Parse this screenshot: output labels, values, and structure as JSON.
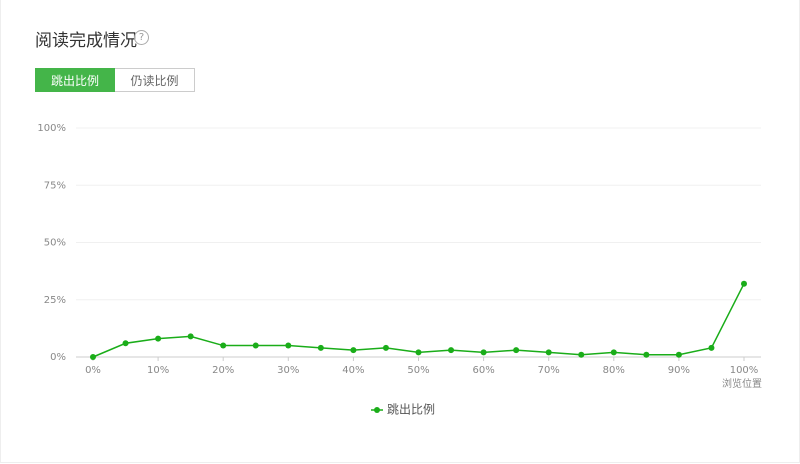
{
  "header": {
    "title": "阅读完成情况",
    "help": "?"
  },
  "tabs": [
    "跳出比例",
    "仍读比例"
  ],
  "chart_data": {
    "type": "line",
    "x": [
      0,
      5,
      10,
      15,
      20,
      25,
      30,
      35,
      40,
      45,
      50,
      55,
      60,
      65,
      70,
      75,
      80,
      85,
      90,
      95,
      100
    ],
    "series": [
      {
        "name": "跳出比例",
        "color": "#1aad19",
        "values": [
          0,
          6,
          8,
          9,
          5,
          5,
          5,
          4,
          3,
          4,
          2,
          3,
          2,
          3,
          2,
          1,
          2,
          1,
          1,
          4,
          32
        ]
      }
    ],
    "x_label": "浏览位置",
    "xlim": [
      0,
      100
    ],
    "xticks": [
      {
        "value": 0,
        "label": "0%"
      },
      {
        "value": 10,
        "label": "10%"
      },
      {
        "value": 20,
        "label": "20%"
      },
      {
        "value": 30,
        "label": "30%"
      },
      {
        "value": 40,
        "label": "40%"
      },
      {
        "value": 50,
        "label": "50%"
      },
      {
        "value": 60,
        "label": "60%"
      },
      {
        "value": 70,
        "label": "70%"
      },
      {
        "value": 80,
        "label": "80%"
      },
      {
        "value": 90,
        "label": "90%"
      },
      {
        "value": 100,
        "label": "100%"
      }
    ],
    "ylim": [
      0,
      100
    ],
    "yticks": [
      {
        "value": 0,
        "label": "0%"
      },
      {
        "value": 25,
        "label": "25%"
      },
      {
        "value": 50,
        "label": "50%"
      },
      {
        "value": 75,
        "label": "75%"
      },
      {
        "value": 100,
        "label": "100%"
      }
    ],
    "grid": true
  }
}
